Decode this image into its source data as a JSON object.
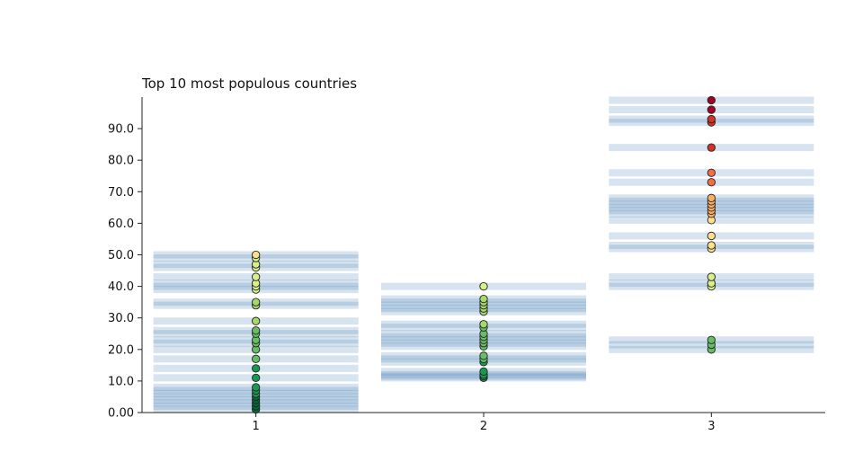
{
  "chart_data": {
    "type": "scatter",
    "title": "Top 10 most populous countries",
    "xlabel": "",
    "ylabel": "",
    "categories": [
      "1",
      "2",
      "3"
    ],
    "ylim": [
      0,
      100
    ],
    "yticks": [
      "0.00",
      "10.0",
      "20.0",
      "30.0",
      "40.0",
      "50.0",
      "60.0",
      "70.0",
      "80.0",
      "90.0"
    ],
    "ytick_values": [
      0,
      10,
      20,
      30,
      40,
      50,
      60,
      70,
      80,
      90
    ],
    "grid": false,
    "legend": "none",
    "strip_color": "#4a7fb5",
    "point_colorscale": [
      "#006837",
      "#1a9850",
      "#66bd63",
      "#a6d96a",
      "#d9ef8b",
      "#fee08b",
      "#fdae61",
      "#f46d43",
      "#d73027",
      "#a50026"
    ],
    "series": [
      {
        "category": "1",
        "values": [
          1,
          2,
          3,
          4,
          5,
          6,
          7,
          8,
          11,
          14,
          17,
          20,
          22,
          23,
          25,
          26,
          29,
          34,
          35,
          39,
          40,
          41,
          43,
          46,
          47,
          49,
          50
        ]
      },
      {
        "category": "2",
        "values": [
          11,
          11.5,
          12,
          13,
          16,
          17,
          18,
          21,
          22,
          23,
          24,
          25,
          27,
          28,
          32,
          33,
          34,
          35,
          36,
          40
        ]
      },
      {
        "category": "3",
        "values": [
          20,
          21.5,
          23,
          40,
          41,
          43,
          52,
          53,
          56,
          61,
          63,
          64,
          65,
          66,
          67,
          68,
          73,
          76,
          84,
          92,
          93,
          96,
          99
        ]
      }
    ]
  }
}
